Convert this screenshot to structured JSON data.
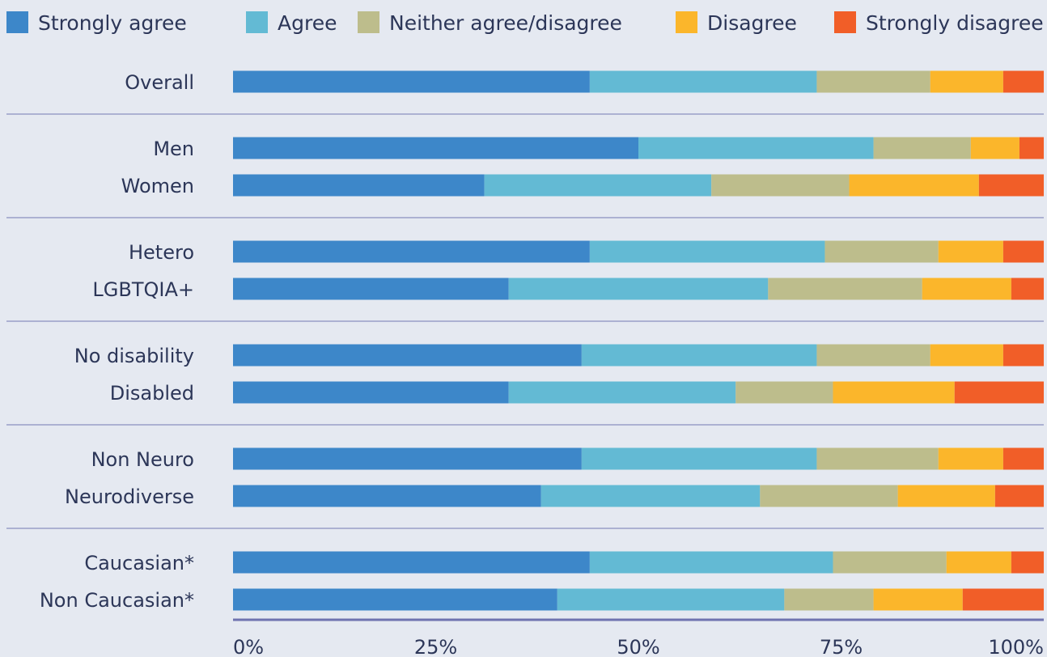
{
  "chart_data": {
    "type": "bar",
    "orientation": "horizontal",
    "stacked": true,
    "normalized": true,
    "categories": [
      "Overall",
      "Men",
      "Women",
      "Hetero",
      "LGBTQIA+",
      "No disability",
      "Disabled",
      "Non Neuro",
      "Neurodiverse",
      "Caucasian*",
      "Non Caucasian*"
    ],
    "groups": [
      [
        "Overall"
      ],
      [
        "Men",
        "Women"
      ],
      [
        "Hetero",
        "LGBTQIA+"
      ],
      [
        "No disability",
        "Disabled"
      ],
      [
        "Non Neuro",
        "Neurodiverse"
      ],
      [
        "Caucasian*",
        "Non Caucasian*"
      ]
    ],
    "series": [
      {
        "name": "Strongly agree",
        "color": "#3d87c9",
        "values": [
          44,
          50,
          31,
          44,
          34,
          43,
          34,
          43,
          38,
          44,
          40
        ]
      },
      {
        "name": "Agree",
        "color": "#63bad4",
        "values": [
          28,
          29,
          28,
          29,
          32,
          29,
          28,
          29,
          27,
          30,
          28
        ]
      },
      {
        "name": "Neither agree/disagree",
        "color": "#bdbd8c",
        "values": [
          14,
          12,
          17,
          14,
          19,
          14,
          12,
          15,
          17,
          14,
          11
        ]
      },
      {
        "name": "Disagree",
        "color": "#fbb62b",
        "values": [
          9,
          6,
          16,
          8,
          11,
          9,
          15,
          8,
          12,
          8,
          11
        ]
      },
      {
        "name": "Strongly disagree",
        "color": "#f15e28",
        "values": [
          5,
          3,
          8,
          5,
          4,
          5,
          11,
          5,
          6,
          4,
          10
        ]
      }
    ],
    "x_ticks": [
      "0%",
      "25%",
      "50%",
      "75%",
      "100%"
    ],
    "xlim": [
      0,
      100
    ],
    "grid": false,
    "legend_position": "top"
  }
}
